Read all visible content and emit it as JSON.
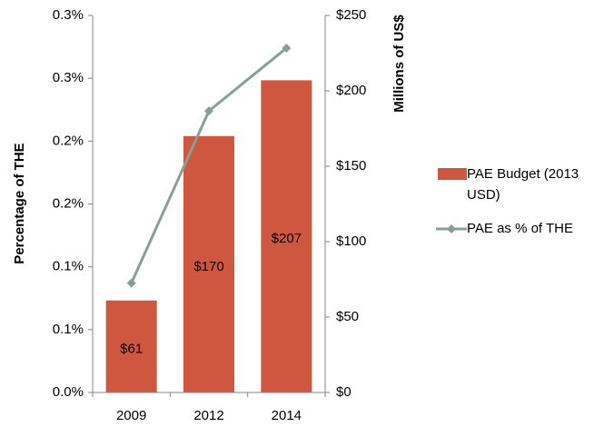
{
  "chart_data": {
    "type": "bar",
    "categories": [
      "2009",
      "2012",
      "2014"
    ],
    "series": [
      {
        "name": "PAE Budget (2013 USD)",
        "color": "#cf573f",
        "axis": "y2",
        "type": "bar",
        "values": [
          61,
          170,
          207
        ],
        "value_labels": [
          "$61",
          "$170",
          "$207"
        ]
      },
      {
        "name": "PAE as % of THE",
        "color": "#87a096",
        "type": "line",
        "values": [
          0.087,
          0.224,
          0.274
        ]
      }
    ],
    "ylabel": "Percentage of THE",
    "y2label": "Millions of US$",
    "ylim": [
      0,
      0.3
    ],
    "yticks": [
      {
        "value": 0,
        "label": "0.0%"
      },
      {
        "value": 0.05,
        "label": "0.1%"
      },
      {
        "value": 0.1,
        "label": "0.1%"
      },
      {
        "value": 0.15,
        "label": "0.2%"
      },
      {
        "value": 0.2,
        "label": "0.2%"
      },
      {
        "value": 0.25,
        "label": "0.3%"
      },
      {
        "value": 0.3,
        "label": "0.3%"
      }
    ],
    "y2lim": [
      0,
      250
    ],
    "y2ticks": [
      {
        "value": 0,
        "label": "$0"
      },
      {
        "value": 50,
        "label": "$50"
      },
      {
        "value": 100,
        "label": "$100"
      },
      {
        "value": 150,
        "label": "$150"
      },
      {
        "value": 200,
        "label": "$200"
      },
      {
        "value": 250,
        "label": "$250"
      }
    ],
    "legend": "right"
  }
}
